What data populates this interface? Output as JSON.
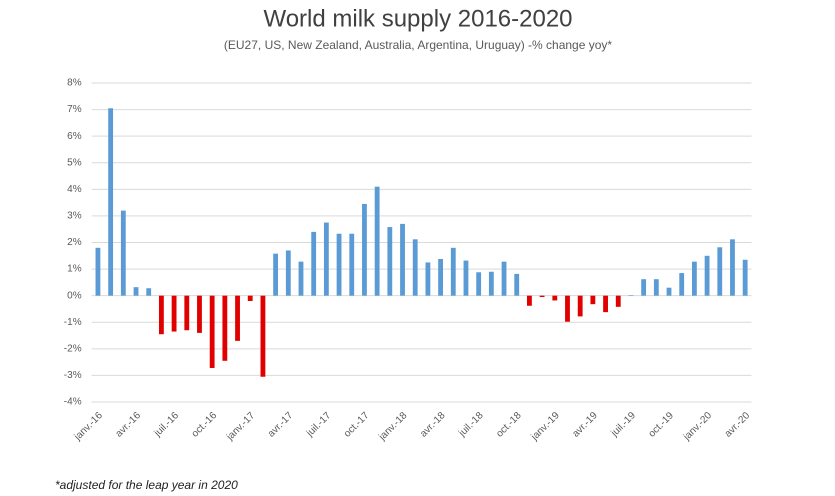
{
  "chart_data": {
    "type": "bar",
    "title": "World milk supply 2016-2020",
    "subtitle": "(EU27, US, New Zealand, Australia, Argentina, Uruguay) -% change yoy*",
    "footnote": "*adjusted for the leap year in 2020",
    "categories": [
      "janv.-16",
      null,
      null,
      "avr.-16",
      null,
      null,
      "juil.-16",
      null,
      null,
      "oct.-16",
      null,
      null,
      "janv.-17",
      null,
      null,
      "avr.-17",
      null,
      null,
      "juil.-17",
      null,
      null,
      "oct.-17",
      null,
      null,
      "janv.-18",
      null,
      null,
      "avr.-18",
      null,
      null,
      "juil.-18",
      null,
      null,
      "oct.-18",
      null,
      null,
      "janv.-19",
      null,
      null,
      "avr.-19",
      null,
      null,
      "juil.-19",
      null,
      null,
      "oct.-19",
      null,
      null,
      "janv.-20",
      null,
      null,
      "avr.-20"
    ],
    "values": [
      1.8,
      7.05,
      3.2,
      0.32,
      0.28,
      -1.45,
      -1.35,
      -1.3,
      -1.4,
      -2.72,
      -2.45,
      -1.7,
      -0.2,
      -3.05,
      1.58,
      1.7,
      1.28,
      2.4,
      2.75,
      2.33,
      2.33,
      3.45,
      4.1,
      2.58,
      2.7,
      2.12,
      1.25,
      1.38,
      1.8,
      1.32,
      0.88,
      0.9,
      1.28,
      0.82,
      -0.38,
      -0.05,
      -0.18,
      -0.98,
      -0.78,
      -0.32,
      -0.62,
      -0.42,
      0.02,
      0.62,
      0.62,
      0.3,
      0.85,
      1.28,
      1.5,
      1.82,
      2.12,
      1.35
    ],
    "color": "#5b9bd5",
    "negative_color": "#e00000",
    "ylim": [
      -4,
      8
    ],
    "yticks": [
      {
        "value": -4,
        "label": "-4%"
      },
      {
        "value": -3,
        "label": "-3%"
      },
      {
        "value": -2,
        "label": "-2%"
      },
      {
        "value": -1,
        "label": "-1%"
      },
      {
        "value": 0,
        "label": "0%"
      },
      {
        "value": 1,
        "label": "1%"
      },
      {
        "value": 2,
        "label": "2%"
      },
      {
        "value": 3,
        "label": "3%"
      },
      {
        "value": 4,
        "label": "4%"
      },
      {
        "value": 5,
        "label": "5%"
      },
      {
        "value": 6,
        "label": "6%"
      },
      {
        "value": 7,
        "label": "7%"
      },
      {
        "value": 8,
        "label": "8%"
      }
    ],
    "grid": true
  }
}
